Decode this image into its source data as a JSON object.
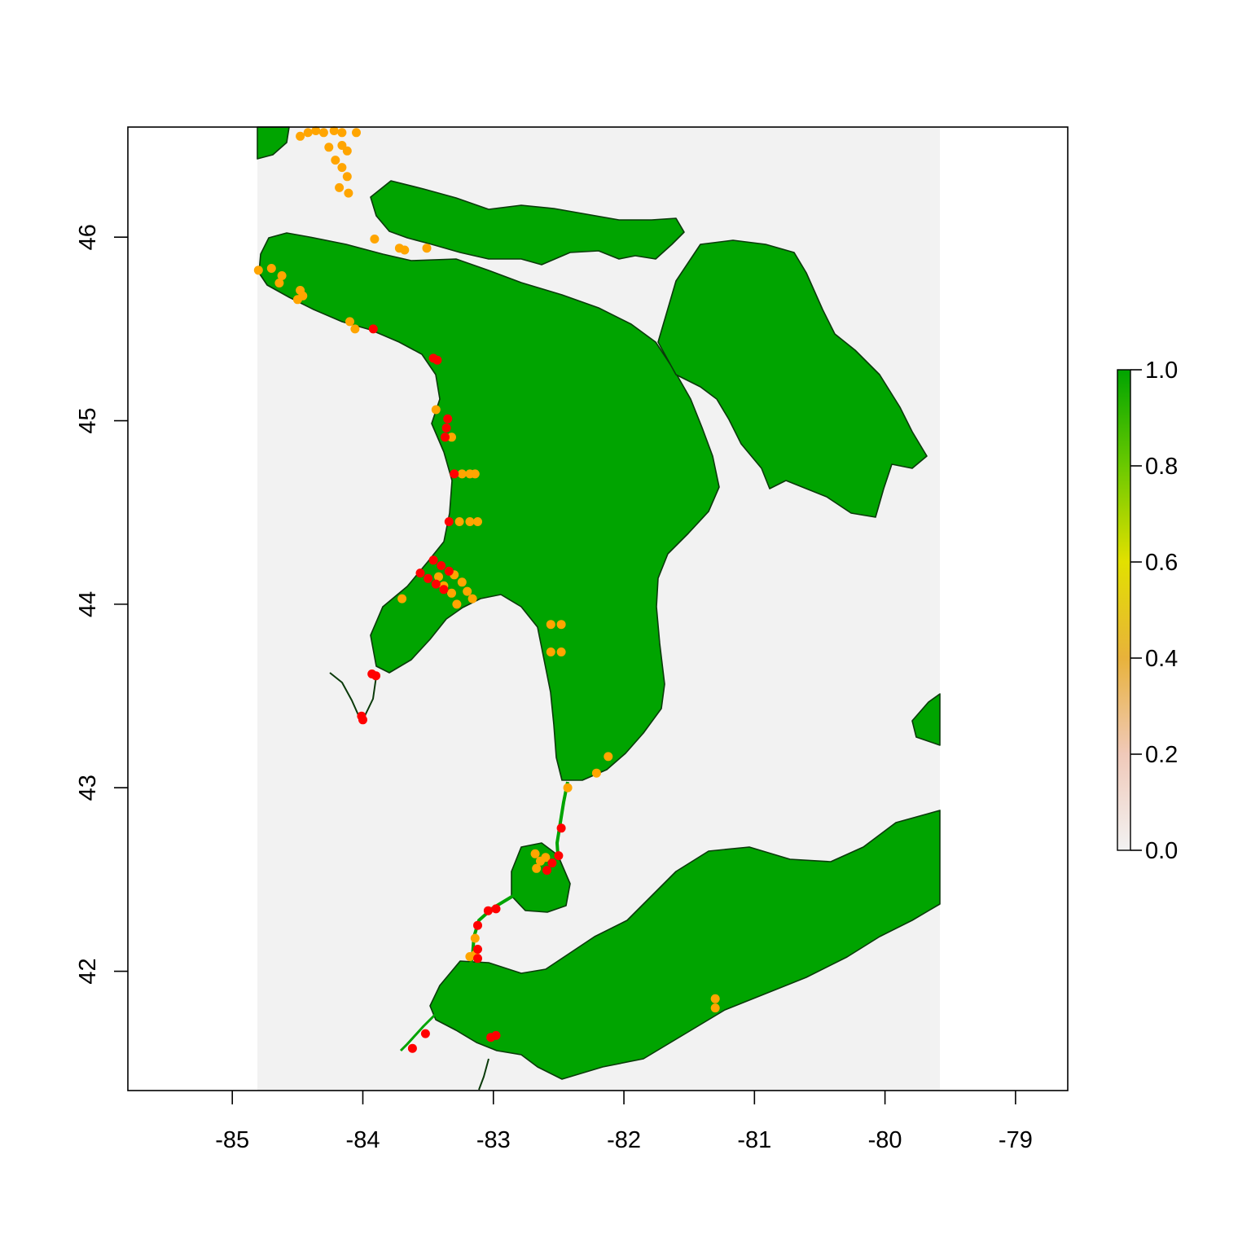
{
  "colors": {
    "background": "#ffffff",
    "water": "#f2f2f2",
    "land": "#00a400",
    "outline": "#0a3a0a",
    "point_high": "#ff0000",
    "point_mid": "#ffa500",
    "legend_gradient": [
      "#f2f2f2",
      "#f0c9b9",
      "#e8b23b",
      "#e2e000",
      "#6ac900",
      "#00a400"
    ]
  },
  "chart_data": {
    "type": "scatter",
    "title": "",
    "xlabel": "",
    "ylabel": "",
    "xlim": [
      -85.8,
      -78.6
    ],
    "ylim": [
      41.35,
      46.6
    ],
    "raster_extent": {
      "lon": [
        -84.8,
        -79.6
      ],
      "lat": [
        41.35,
        46.6
      ]
    },
    "x_ticks": [
      -85,
      -84,
      -83,
      -82,
      -81,
      -80,
      -79
    ],
    "y_ticks": [
      42,
      43,
      44,
      45,
      46
    ],
    "x_tick_labels": [
      "-85",
      "-84",
      "-83",
      "-82",
      "-81",
      "-80",
      "-79"
    ],
    "y_tick_labels": [
      "42",
      "43",
      "44",
      "45",
      "46"
    ],
    "legend": {
      "placement": "right",
      "range": [
        0,
        1
      ],
      "ticks": [
        0.0,
        0.2,
        0.4,
        0.6,
        0.8,
        1.0
      ],
      "tick_labels": [
        "0.0",
        "0.2",
        "0.4",
        "0.6",
        "0.8",
        "1.0"
      ]
    },
    "series": [
      {
        "color": "#ffa500",
        "points": [
          [
            -84.48,
            46.55
          ],
          [
            -84.42,
            46.57
          ],
          [
            -84.36,
            46.58
          ],
          [
            -84.3,
            46.57
          ],
          [
            -84.22,
            46.58
          ],
          [
            -84.16,
            46.57
          ],
          [
            -84.05,
            46.57
          ],
          [
            -84.26,
            46.49
          ],
          [
            -84.21,
            46.42
          ],
          [
            -84.16,
            46.5
          ],
          [
            -84.12,
            46.47
          ],
          [
            -84.16,
            46.38
          ],
          [
            -84.12,
            46.33
          ],
          [
            -84.18,
            46.27
          ],
          [
            -84.11,
            46.24
          ],
          [
            -83.91,
            45.99
          ],
          [
            -83.72,
            45.94
          ],
          [
            -83.68,
            45.93
          ],
          [
            -83.51,
            45.94
          ],
          [
            -84.8,
            45.82
          ],
          [
            -84.7,
            45.83
          ],
          [
            -84.62,
            45.79
          ],
          [
            -84.64,
            45.75
          ],
          [
            -84.48,
            45.71
          ],
          [
            -84.46,
            45.68
          ],
          [
            -84.5,
            45.66
          ],
          [
            -84.1,
            45.54
          ],
          [
            -84.06,
            45.5
          ],
          [
            -83.44,
            45.06
          ],
          [
            -83.32,
            44.91
          ],
          [
            -83.24,
            44.71
          ],
          [
            -83.18,
            44.71
          ],
          [
            -83.14,
            44.71
          ],
          [
            -83.26,
            44.45
          ],
          [
            -83.18,
            44.45
          ],
          [
            -83.12,
            44.45
          ],
          [
            -83.42,
            44.15
          ],
          [
            -83.38,
            44.1
          ],
          [
            -83.32,
            44.06
          ],
          [
            -83.28,
            44.0
          ],
          [
            -83.3,
            44.16
          ],
          [
            -83.24,
            44.12
          ],
          [
            -83.2,
            44.07
          ],
          [
            -83.16,
            44.03
          ],
          [
            -83.7,
            44.03
          ],
          [
            -82.56,
            43.89
          ],
          [
            -82.48,
            43.89
          ],
          [
            -82.56,
            43.74
          ],
          [
            -82.48,
            43.74
          ],
          [
            -82.12,
            43.17
          ],
          [
            -82.21,
            43.08
          ],
          [
            -82.43,
            43.0
          ],
          [
            -82.68,
            42.64
          ],
          [
            -82.64,
            42.6
          ],
          [
            -82.67,
            42.56
          ],
          [
            -82.6,
            42.62
          ],
          [
            -83.14,
            42.18
          ],
          [
            -83.14,
            42.09
          ],
          [
            -83.18,
            42.08
          ],
          [
            -81.3,
            41.85
          ],
          [
            -81.3,
            41.8
          ]
        ]
      },
      {
        "color": "#ff0000",
        "points": [
          [
            -83.92,
            45.5
          ],
          [
            -83.46,
            45.34
          ],
          [
            -83.43,
            45.33
          ],
          [
            -83.35,
            45.01
          ],
          [
            -83.36,
            44.96
          ],
          [
            -83.37,
            44.91
          ],
          [
            -83.3,
            44.71
          ],
          [
            -83.34,
            44.45
          ],
          [
            -83.46,
            44.24
          ],
          [
            -83.4,
            44.21
          ],
          [
            -83.34,
            44.18
          ],
          [
            -83.56,
            44.17
          ],
          [
            -83.5,
            44.14
          ],
          [
            -83.44,
            44.11
          ],
          [
            -83.38,
            44.08
          ],
          [
            -83.9,
            43.61
          ],
          [
            -83.93,
            43.62
          ],
          [
            -84.01,
            43.39
          ],
          [
            -84.0,
            43.37
          ],
          [
            -82.48,
            42.78
          ],
          [
            -82.5,
            42.63
          ],
          [
            -82.55,
            42.59
          ],
          [
            -82.59,
            42.55
          ],
          [
            -82.98,
            42.34
          ],
          [
            -83.04,
            42.33
          ],
          [
            -83.12,
            42.25
          ],
          [
            -83.12,
            42.12
          ],
          [
            -83.12,
            42.07
          ],
          [
            -83.02,
            41.64
          ],
          [
            -82.98,
            41.65
          ],
          [
            -83.52,
            41.66
          ],
          [
            -83.62,
            41.58
          ]
        ]
      }
    ]
  }
}
